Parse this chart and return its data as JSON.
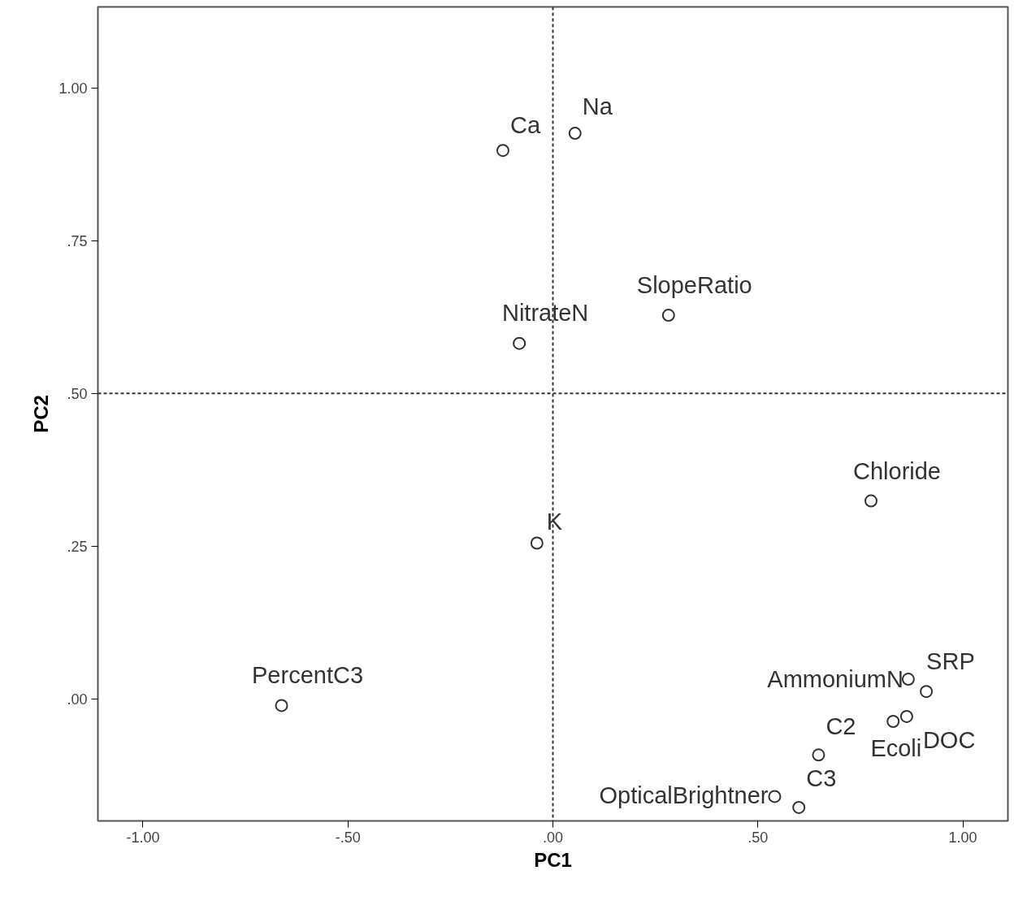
{
  "chart_data": {
    "type": "scatter",
    "xlabel": "PC1",
    "ylabel": "PC2",
    "x": [
      -0.122,
      0.054,
      -0.082,
      0.282,
      0.776,
      -0.039,
      -0.662,
      0.867,
      0.911,
      0.83,
      0.863,
      0.648,
      0.541,
      0.6
    ],
    "values": [
      0.898,
      0.926,
      0.582,
      0.628,
      0.324,
      0.255,
      -0.011,
      0.032,
      0.012,
      -0.037,
      -0.029,
      -0.092,
      -0.16,
      -0.178
    ],
    "value_labels": [
      "Ca",
      "Na",
      "NitrateN",
      "SlopeRatio",
      "Chloride",
      "K",
      "PercentC3",
      "AmmoniumN",
      "SRP",
      "Ecoli",
      "DOC",
      "C2",
      "OpticalBrightner",
      "C3"
    ],
    "color": "#333333",
    "marker": "circle",
    "grid": false,
    "xlim": [
      -1.11,
      1.11
    ],
    "ylim": [
      -0.2,
      1.133
    ],
    "xticks": [
      {
        "value": -1,
        "label": "-1.00"
      },
      {
        "value": -0.5,
        "label": "-.50"
      },
      {
        "value": 0,
        "label": ".00"
      },
      {
        "value": 0.5,
        "label": ".50"
      },
      {
        "value": 1,
        "label": "1.00"
      }
    ],
    "yticks": [
      {
        "value": 0,
        "label": ".00"
      },
      {
        "value": 0.25,
        "label": ".25"
      },
      {
        "value": 0.5,
        "label": ".50"
      },
      {
        "value": 0.75,
        "label": ".75"
      },
      {
        "value": 1,
        "label": "1.00"
      }
    ],
    "ref_lines": [
      {
        "axis": "x",
        "value": 0,
        "color": "#333333",
        "line_style": "dotted"
      },
      {
        "axis": "y",
        "value": 0.5,
        "color": "#333333",
        "line_style": "dotted"
      }
    ]
  }
}
